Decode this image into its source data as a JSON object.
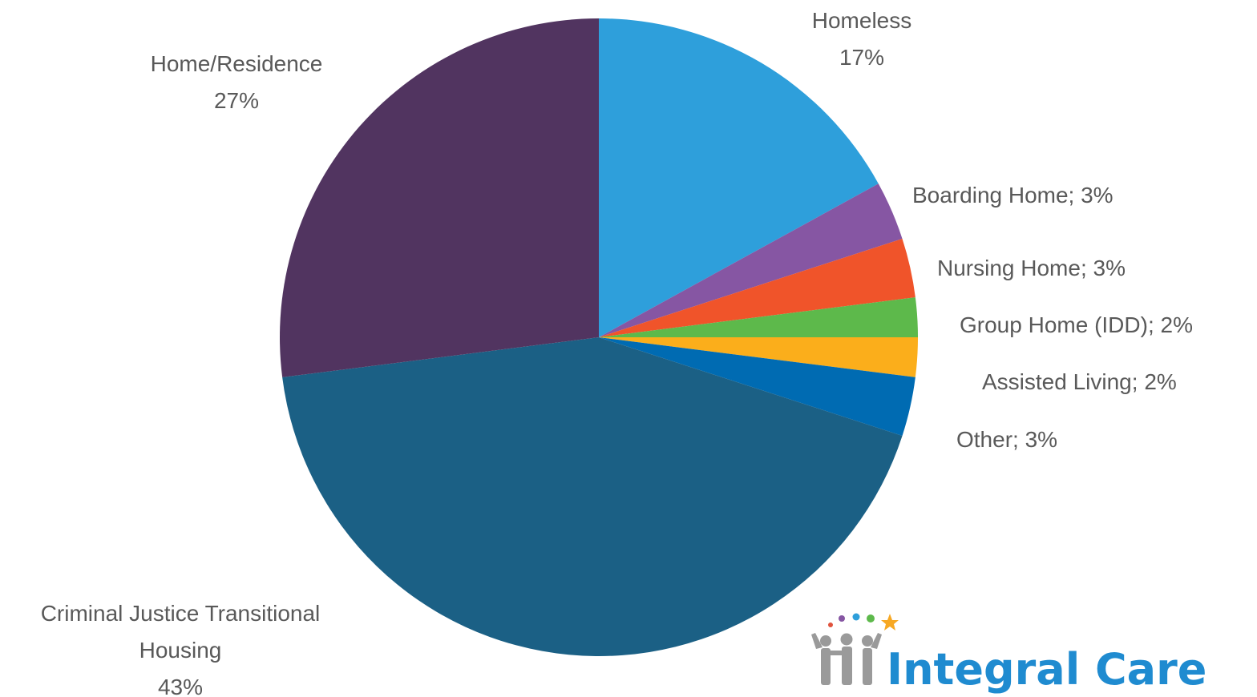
{
  "chart_data": {
    "type": "pie",
    "title": "",
    "slices": [
      {
        "name": "Homeless",
        "value": 17,
        "value_label": "17%",
        "color": "#2E9FDB"
      },
      {
        "name": "Boarding Home",
        "value": 3,
        "value_label": "3%",
        "color": "#8656A3"
      },
      {
        "name": "Nursing Home",
        "value": 3,
        "value_label": "3%",
        "color": "#F0542A"
      },
      {
        "name": "Group Home (IDD)",
        "value": 2,
        "value_label": "2%",
        "color": "#5DB94B"
      },
      {
        "name": "Assisted Living",
        "value": 2,
        "value_label": "2%",
        "color": "#FBAE1B"
      },
      {
        "name": "Other",
        "value": 3,
        "value_label": "3%",
        "color": "#006BB2"
      },
      {
        "name": "Criminal Justice Transitional Housing",
        "value": 43,
        "value_label": "43%",
        "color": "#1B6085"
      },
      {
        "name": "Home/Residence",
        "value": 27,
        "value_label": "27%",
        "color": "#513460"
      }
    ],
    "start_angle_deg": 0,
    "direction": "clockwise",
    "legend": "none",
    "labels": [
      {
        "lines": [
          "Homeless",
          "17%"
        ]
      },
      {
        "lines": [
          "Boarding Home; 3%"
        ]
      },
      {
        "lines": [
          "Nursing Home; 3%"
        ]
      },
      {
        "lines": [
          "Group Home (IDD); 2%"
        ]
      },
      {
        "lines": [
          "Assisted Living; 2%"
        ]
      },
      {
        "lines": [
          "Other; 3%"
        ]
      },
      {
        "lines": [
          "Criminal Justice Transitional",
          "Housing",
          "43%"
        ]
      },
      {
        "lines": [
          "Home/Residence",
          "27%"
        ]
      }
    ]
  },
  "logo": {
    "text": "Integral Care",
    "text_color": "#1F8BD0",
    "figure_color": "#9A9A9A",
    "dot_colors": [
      "#E0533D",
      "#8656A3",
      "#2E9FDB",
      "#5DB94B"
    ],
    "star_color": "#F7A823"
  }
}
